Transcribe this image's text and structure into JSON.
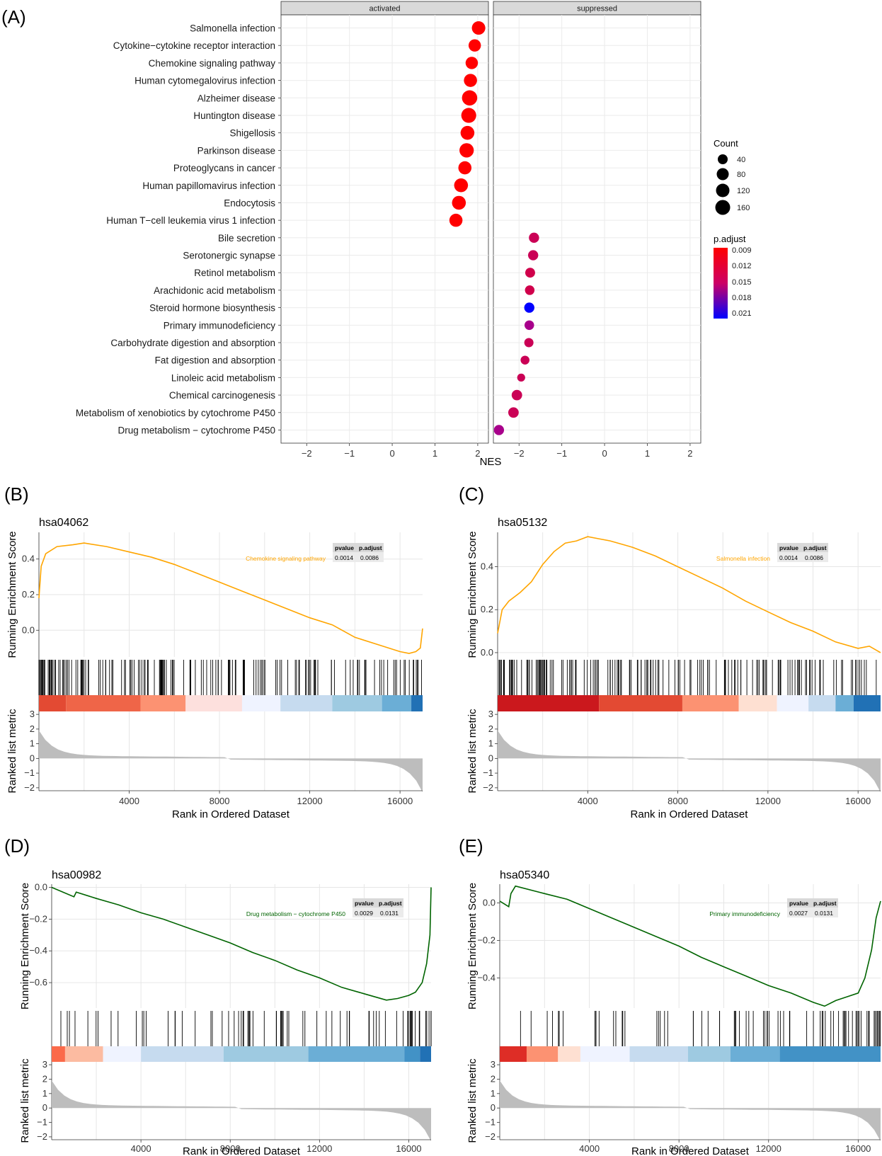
{
  "panel_a": {
    "letter": "(A)",
    "facets": [
      "activated",
      "suppressed"
    ],
    "xlabel": "NES",
    "x_ticks": [
      "−2",
      "−1",
      "0",
      "1",
      "2"
    ],
    "legend_count": {
      "title": "Count",
      "labels": [
        "40",
        "80",
        "120",
        "160"
      ]
    },
    "legend_padj": {
      "title": "p.adjust",
      "labels": [
        "0.009",
        "0.012",
        "0.015",
        "0.018",
        "0.021"
      ]
    }
  },
  "colors": {
    "red": "#ff0000",
    "blue": "#0000ff",
    "activated_line": "#ffa500",
    "suppressed_line": "#006400",
    "grid": "#ebebeb",
    "strip": "#d9d9d9"
  },
  "chart_data": [
    {
      "type": "scatter",
      "title": "",
      "xlabel": "NES",
      "ylabel": "",
      "facets": [
        "activated",
        "suppressed"
      ],
      "xlim": [
        -2.6,
        2.25
      ],
      "pathways": [
        {
          "name": "Salmonella infection",
          "facet": "activated",
          "nes": 2.02,
          "count": 120,
          "p_adjust": 0.009
        },
        {
          "name": "Cytokine−cytokine receptor interaction",
          "facet": "activated",
          "nes": 1.93,
          "count": 90,
          "p_adjust": 0.009
        },
        {
          "name": "Chemokine signaling pathway",
          "facet": "activated",
          "nes": 1.86,
          "count": 90,
          "p_adjust": 0.009
        },
        {
          "name": "Human cytomegalovirus infection",
          "facet": "activated",
          "nes": 1.83,
          "count": 110,
          "p_adjust": 0.009
        },
        {
          "name": "Alzheimer disease",
          "facet": "activated",
          "nes": 1.81,
          "count": 175,
          "p_adjust": 0.009
        },
        {
          "name": "Huntington disease",
          "facet": "activated",
          "nes": 1.79,
          "count": 165,
          "p_adjust": 0.009
        },
        {
          "name": "Shigellosis",
          "facet": "activated",
          "nes": 1.76,
          "count": 130,
          "p_adjust": 0.009
        },
        {
          "name": "Parkinson disease",
          "facet": "activated",
          "nes": 1.74,
          "count": 145,
          "p_adjust": 0.009
        },
        {
          "name": "Proteoglycans in cancer",
          "facet": "activated",
          "nes": 1.7,
          "count": 110,
          "p_adjust": 0.009
        },
        {
          "name": "Human papillomavirus infection",
          "facet": "activated",
          "nes": 1.61,
          "count": 130,
          "p_adjust": 0.009
        },
        {
          "name": "Endocytosis",
          "facet": "activated",
          "nes": 1.56,
          "count": 130,
          "p_adjust": 0.009
        },
        {
          "name": "Human T−cell leukemia virus 1 infection",
          "facet": "activated",
          "nes": 1.49,
          "count": 110,
          "p_adjust": 0.009
        },
        {
          "name": "Bile secretion",
          "facet": "suppressed",
          "nes": -1.65,
          "count": 45,
          "p_adjust": 0.0115
        },
        {
          "name": "Serotonergic synapse",
          "facet": "suppressed",
          "nes": -1.67,
          "count": 45,
          "p_adjust": 0.0115
        },
        {
          "name": "Retinol metabolism",
          "facet": "suppressed",
          "nes": -1.74,
          "count": 40,
          "p_adjust": 0.0112
        },
        {
          "name": "Arachidonic acid metabolism",
          "facet": "suppressed",
          "nes": -1.75,
          "count": 35,
          "p_adjust": 0.0112
        },
        {
          "name": "Steroid hormone biosynthesis",
          "facet": "suppressed",
          "nes": -1.76,
          "count": 45,
          "p_adjust": 0.021
        },
        {
          "name": "Primary immunodeficiency",
          "facet": "suppressed",
          "nes": -1.76,
          "count": 35,
          "p_adjust": 0.0131
        },
        {
          "name": "Carbohydrate digestion and absorption",
          "facet": "suppressed",
          "nes": -1.77,
          "count": 30,
          "p_adjust": 0.0115
        },
        {
          "name": "Fat digestion and absorption",
          "facet": "suppressed",
          "nes": -1.86,
          "count": 25,
          "p_adjust": 0.0115
        },
        {
          "name": "Linoleic acid metabolism",
          "facet": "suppressed",
          "nes": -1.95,
          "count": 15,
          "p_adjust": 0.0115
        },
        {
          "name": "Chemical carcinogenesis",
          "facet": "suppressed",
          "nes": -2.05,
          "count": 50,
          "p_adjust": 0.0115
        },
        {
          "name": "Metabolism of xenobiotics by cytochrome P450",
          "facet": "suppressed",
          "nes": -2.13,
          "count": 50,
          "p_adjust": 0.0115
        },
        {
          "name": "Drug metabolism − cytochrome P450",
          "facet": "suppressed",
          "nes": -2.47,
          "count": 45,
          "p_adjust": 0.0131
        }
      ]
    },
    {
      "type": "line",
      "panel": "(B)",
      "title": "hsa04062",
      "xlabel": "Rank in Ordered Dataset",
      "ylabel": "Running Enrichment Score",
      "ylabel2": "Ranked list metric",
      "direction": "activated",
      "description": "Chemokine signaling pathway",
      "table": {
        "headers": [
          "pvalue",
          "p.adjust"
        ],
        "values": [
          "0.0014",
          "0.0086"
        ]
      },
      "x_ticks": [
        "4000",
        "8000",
        "12000",
        "16000"
      ],
      "y_ticks": [
        "0.0",
        "0.2",
        "0.4"
      ],
      "metric_ticks": [
        "3",
        "2",
        "1",
        "0",
        "−1",
        "−2"
      ],
      "xlim": [
        0,
        17000
      ],
      "ylim": [
        -0.15,
        0.55
      ],
      "x": [
        0,
        100,
        300,
        800,
        1500,
        2000,
        3000,
        4000,
        5000,
        6000,
        7000,
        8000,
        9000,
        10000,
        11000,
        12000,
        13000,
        14000,
        15000,
        16000,
        16400,
        16700,
        16900,
        17000
      ],
      "y": [
        0.18,
        0.36,
        0.43,
        0.47,
        0.48,
        0.49,
        0.47,
        0.44,
        0.41,
        0.37,
        0.32,
        0.27,
        0.22,
        0.17,
        0.12,
        0.07,
        0.03,
        -0.04,
        -0.08,
        -0.12,
        -0.13,
        -0.12,
        -0.1,
        0.01
      ],
      "strip": [
        "#e34a33",
        "#ef6548",
        "#fc9272",
        "#fde0dd",
        "#eff3ff",
        "#c6dbef",
        "#9ecae1",
        "#6baed6",
        "#2171b5"
      ],
      "strip_breaks": [
        0,
        1200,
        4500,
        6500,
        9000,
        10700,
        13000,
        15200,
        16500,
        17000
      ]
    },
    {
      "type": "line",
      "panel": "(C)",
      "title": "hsa05132",
      "xlabel": "Rank in Ordered Dataset",
      "ylabel": "Running Enrichment Score",
      "ylabel2": "Ranked list metric",
      "direction": "activated",
      "description": "Salmonella infection",
      "table": {
        "headers": [
          "pvalue",
          "p.adjust"
        ],
        "values": [
          "0.0014",
          "0.0086"
        ]
      },
      "x_ticks": [
        "4000",
        "8000",
        "12000",
        "16000"
      ],
      "y_ticks": [
        "0.0",
        "0.2",
        "0.4"
      ],
      "metric_ticks": [
        "3",
        "2",
        "1",
        "0",
        "−1",
        "−2"
      ],
      "xlim": [
        0,
        17000
      ],
      "ylim": [
        -0.02,
        0.56
      ],
      "x": [
        0,
        200,
        500,
        1000,
        1500,
        2000,
        2500,
        3000,
        3500,
        4000,
        4500,
        5000,
        6000,
        7000,
        8000,
        9000,
        10000,
        11000,
        12000,
        13000,
        14000,
        15000,
        16000,
        16500,
        17000
      ],
      "y": [
        0.09,
        0.2,
        0.24,
        0.28,
        0.33,
        0.41,
        0.47,
        0.51,
        0.52,
        0.54,
        0.53,
        0.52,
        0.49,
        0.45,
        0.4,
        0.35,
        0.3,
        0.24,
        0.19,
        0.14,
        0.1,
        0.05,
        0.02,
        0.03,
        0.0
      ],
      "strip": [
        "#cb181d",
        "#e34a33",
        "#fc9272",
        "#fee0d2",
        "#eff3ff",
        "#c6dbef",
        "#6baed6",
        "#2171b5"
      ],
      "strip_breaks": [
        0,
        4500,
        8200,
        10700,
        12400,
        13800,
        15000,
        15800,
        17000
      ]
    },
    {
      "type": "line",
      "panel": "(D)",
      "title": "hsa00982",
      "xlabel": "Rank in Ordered Dataset",
      "ylabel": "Running Enrichment Score",
      "ylabel2": "Ranked list metric",
      "direction": "suppressed",
      "description": "Drug metabolism − cytochrome P450",
      "table": {
        "headers": [
          "pvalue",
          "p.adjust"
        ],
        "values": [
          "0.0029",
          "0.0131"
        ]
      },
      "x_ticks": [
        "4000",
        "8000",
        "12000",
        "16000"
      ],
      "y_ticks": [
        "0.0",
        "−0.2",
        "−0.4",
        "−0.6"
      ],
      "metric_ticks": [
        "3",
        "2",
        "1",
        "0",
        "−1",
        "−2"
      ],
      "xlim": [
        0,
        17000
      ],
      "ylim": [
        -0.76,
        0.02
      ],
      "x": [
        0,
        1000,
        1100,
        2000,
        3000,
        4000,
        5000,
        6000,
        7000,
        8000,
        9000,
        10000,
        11000,
        12000,
        13000,
        14000,
        14500,
        15000,
        15500,
        16000,
        16300,
        16600,
        16800,
        16950,
        17000
      ],
      "y": [
        0.0,
        -0.06,
        -0.03,
        -0.07,
        -0.11,
        -0.16,
        -0.2,
        -0.25,
        -0.3,
        -0.35,
        -0.41,
        -0.46,
        -0.52,
        -0.57,
        -0.63,
        -0.67,
        -0.69,
        -0.71,
        -0.7,
        -0.68,
        -0.66,
        -0.6,
        -0.48,
        -0.3,
        0.0
      ],
      "strip": [
        "#fb6a4a",
        "#fcbba1",
        "#eff3ff",
        "#c6dbef",
        "#9ecae1",
        "#6baed6",
        "#4292c6",
        "#2171b5"
      ],
      "strip_breaks": [
        0,
        600,
        2300,
        4000,
        7700,
        11500,
        15800,
        16500,
        17000
      ]
    },
    {
      "type": "line",
      "panel": "(E)",
      "title": "hsa05340",
      "xlabel": "Rank in Ordered Dataset",
      "ylabel": "Running Enrichment Score",
      "ylabel2": "Ranked list metric",
      "direction": "suppressed",
      "description": "Primary immunodeficiency",
      "table": {
        "headers": [
          "pvalue",
          "p.adjust"
        ],
        "values": [
          "0.0027",
          "0.0131"
        ]
      },
      "x_ticks": [
        "4000",
        "8000",
        "12000",
        "16000"
      ],
      "y_ticks": [
        "0.0",
        "−0.2",
        "−0.4"
      ],
      "metric_ticks": [
        "3",
        "2",
        "1",
        "0",
        "−1",
        "−2"
      ],
      "xlim": [
        0,
        17000
      ],
      "ylim": [
        -0.56,
        0.1
      ],
      "x": [
        0,
        400,
        500,
        700,
        2000,
        3000,
        4000,
        5000,
        6000,
        7000,
        8000,
        9000,
        10000,
        11000,
        12000,
        13000,
        14000,
        14500,
        15000,
        15500,
        16000,
        16300,
        16600,
        16800,
        17000
      ],
      "y": [
        0.01,
        -0.02,
        0.05,
        0.09,
        0.05,
        0.02,
        -0.03,
        -0.08,
        -0.13,
        -0.18,
        -0.23,
        -0.29,
        -0.34,
        -0.39,
        -0.44,
        -0.48,
        -0.53,
        -0.55,
        -0.52,
        -0.5,
        -0.48,
        -0.4,
        -0.25,
        -0.08,
        0.01
      ],
      "strip": [
        "#de2d26",
        "#fc9272",
        "#fee0d2",
        "#eff3ff",
        "#c6dbef",
        "#9ecae1",
        "#6baed6",
        "#4292c6"
      ],
      "strip_breaks": [
        0,
        1200,
        2600,
        3600,
        5800,
        8400,
        10300,
        12500,
        17000
      ]
    }
  ]
}
